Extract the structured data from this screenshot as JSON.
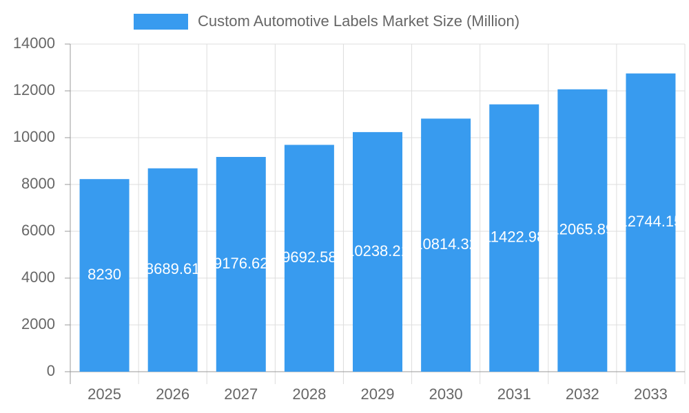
{
  "chart_data": {
    "type": "bar",
    "series": [
      {
        "name": "Custom Automotive Labels Market Size (Million)",
        "color": "#389bef",
        "values": [
          8230,
          8689.61,
          9176.62,
          9692.58,
          10238.21,
          10814.32,
          11422.98,
          12065.89,
          12744.15
        ]
      }
    ],
    "categories": [
      "2025",
      "2026",
      "2027",
      "2028",
      "2029",
      "2030",
      "2031",
      "2032",
      "2033"
    ],
    "ylim": [
      0,
      14000
    ],
    "yticks": [
      0,
      2000,
      4000,
      6000,
      8000,
      10000,
      12000,
      14000
    ],
    "grid": true
  }
}
